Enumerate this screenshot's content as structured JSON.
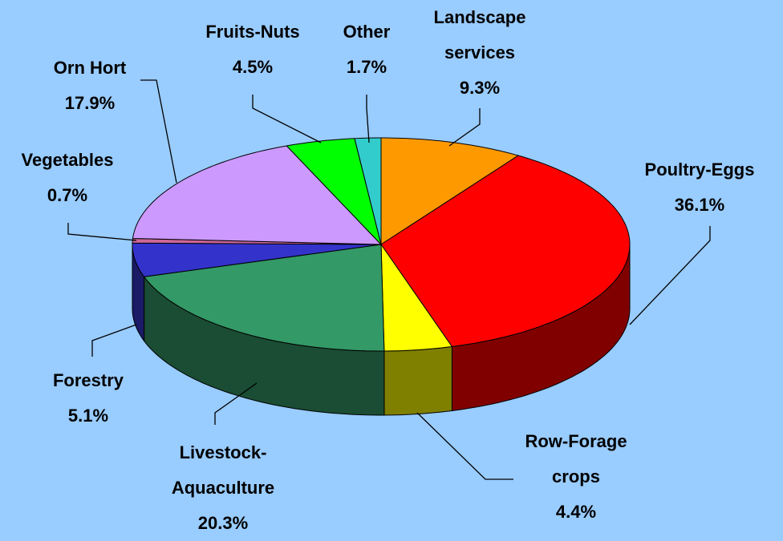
{
  "chart_data": {
    "type": "pie3d",
    "categories": [
      "Landscape services",
      "Poultry-Eggs",
      "Row-Forage crops",
      "Livestock-Aquaculture",
      "Forestry",
      "Vegetables",
      "Orn Hort",
      "Fruits-Nuts",
      "Other"
    ],
    "values": [
      9.3,
      36.1,
      4.4,
      20.3,
      5.1,
      0.7,
      17.9,
      4.5,
      1.7
    ],
    "value_labels": [
      "9.3%",
      "36.1%",
      "4.4%",
      "20.3%",
      "5.1%",
      "0.7%",
      "17.9%",
      "4.5%",
      "1.7%"
    ],
    "colors": [
      "#FF9900",
      "#FF0000",
      "#FFFF00",
      "#339966",
      "#3333CC",
      "#CC6699",
      "#CC99FF",
      "#00FF00",
      "#33CCCC"
    ]
  }
}
